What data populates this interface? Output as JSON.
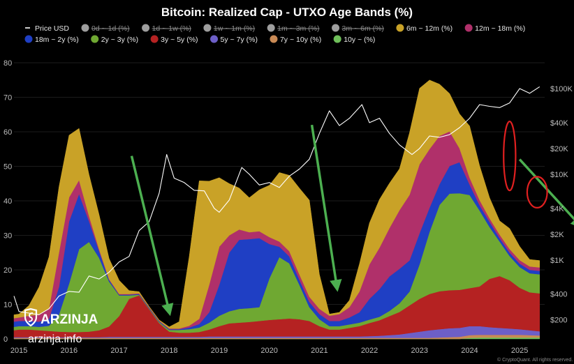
{
  "chart_data": {
    "type": "area",
    "title": "Bitcoin: Realized Cap - UTXO Age Bands (%)",
    "legend": [
      {
        "name": "Price USD",
        "color": "#ffffff",
        "active": true,
        "marker": "line"
      },
      {
        "name": "0d ~ 1d (%)",
        "color": "#9e9e9e",
        "active": false
      },
      {
        "name": "1d ~ 1w (%)",
        "color": "#9e9e9e",
        "active": false
      },
      {
        "name": "1w ~ 1m (%)",
        "color": "#9e9e9e",
        "active": false
      },
      {
        "name": "1m ~ 3m (%)",
        "color": "#9e9e9e",
        "active": false
      },
      {
        "name": "3m ~ 6m (%)",
        "color": "#9e9e9e",
        "active": false
      },
      {
        "name": "6m ~ 12m (%)",
        "color": "#c9a227",
        "active": true
      },
      {
        "name": "12m ~ 18m (%)",
        "color": "#b0306a",
        "active": true
      },
      {
        "name": "18m ~ 2y (%)",
        "color": "#1f3fc4",
        "active": true
      },
      {
        "name": "2y ~ 3y (%)",
        "color": "#6fa832",
        "active": true
      },
      {
        "name": "3y ~ 5y (%)",
        "color": "#b52222",
        "active": true
      },
      {
        "name": "5y ~ 7y (%)",
        "color": "#6d5fc7",
        "active": true
      },
      {
        "name": "7y ~ 10y (%)",
        "color": "#c98a55",
        "active": true
      },
      {
        "name": "10y ~ (%)",
        "color": "#6fbf5a",
        "active": true
      }
    ],
    "y_left": {
      "min": 0,
      "max": 80,
      "ticks": [
        0,
        10,
        20,
        30,
        40,
        50,
        60,
        70,
        80
      ]
    },
    "y_right": {
      "scale": "log",
      "ticks": [
        200,
        400,
        1000,
        2000,
        4000,
        10000,
        20000,
        40000,
        100000
      ],
      "tick_labels": [
        "$200",
        "$400",
        "$1K",
        "$2K",
        "$4K",
        "$10K",
        "$20K",
        "$40K",
        "$100K"
      ]
    },
    "x_axis": {
      "min": 2014.9,
      "max": 2025.5,
      "ticks": [
        2015,
        2016,
        2017,
        2018,
        2019,
        2020,
        2021,
        2022,
        2023,
        2024,
        2025
      ]
    },
    "x": [
      2014.9,
      2015.0,
      2015.2,
      2015.4,
      2015.6,
      2015.8,
      2016.0,
      2016.2,
      2016.4,
      2016.6,
      2016.8,
      2017.0,
      2017.2,
      2017.4,
      2017.6,
      2017.8,
      2018.0,
      2018.2,
      2018.4,
      2018.6,
      2018.8,
      2019.0,
      2019.2,
      2019.4,
      2019.6,
      2019.8,
      2020.0,
      2020.2,
      2020.4,
      2020.6,
      2020.8,
      2021.0,
      2021.2,
      2021.4,
      2021.6,
      2021.8,
      2022.0,
      2022.2,
      2022.4,
      2022.6,
      2022.8,
      2023.0,
      2023.2,
      2023.4,
      2023.6,
      2023.8,
      2024.0,
      2024.2,
      2024.4,
      2024.6,
      2024.8,
      2025.0,
      2025.2,
      2025.4
    ],
    "bands": [
      {
        "name": "10y ~ (%)",
        "color": "#6fbf5a",
        "values": [
          0,
          0,
          0,
          0,
          0,
          0,
          0,
          0,
          0,
          0,
          0,
          0,
          0,
          0,
          0,
          0,
          0,
          0,
          0,
          0,
          0,
          0,
          0,
          0,
          0,
          0,
          0,
          0,
          0,
          0,
          0,
          0,
          0,
          0,
          0,
          0,
          0,
          0,
          0,
          0,
          0,
          0,
          0,
          0,
          0,
          0,
          0.3,
          0.4,
          0.4,
          0.4,
          0.4,
          0.4,
          0.4,
          0.4
        ]
      },
      {
        "name": "7y ~ 10y (%)",
        "color": "#c98a55",
        "values": [
          0.3,
          0.3,
          0.3,
          0.3,
          0.3,
          0.3,
          0.3,
          0.3,
          0.3,
          0.3,
          0.3,
          0.3,
          0.3,
          0.3,
          0.3,
          0.3,
          0.3,
          0.3,
          0.3,
          0.3,
          0.3,
          0.3,
          0.3,
          0.3,
          0.3,
          0.3,
          0.3,
          0.3,
          0.3,
          0.3,
          0.3,
          0.3,
          0.3,
          0.3,
          0.3,
          0.3,
          0.3,
          0.3,
          0.3,
          0.3,
          0.3,
          0.3,
          0.3,
          0.4,
          0.5,
          0.6,
          0.8,
          0.8,
          0.8,
          0.8,
          0.8,
          0.8,
          0.7,
          0.6
        ]
      },
      {
        "name": "5y ~ 7y (%)",
        "color": "#6d5fc7",
        "values": [
          0.2,
          0.2,
          0.2,
          0.2,
          0.2,
          0.2,
          0.2,
          0.2,
          0.2,
          0.2,
          0.3,
          0.3,
          0.3,
          0.3,
          0.3,
          0.3,
          0.3,
          0.3,
          0.3,
          0.3,
          0.4,
          0.4,
          0.4,
          0.4,
          0.4,
          0.4,
          0.4,
          0.4,
          0.4,
          0.4,
          0.4,
          0.4,
          0.4,
          0.4,
          0.4,
          0.4,
          0.5,
          0.6,
          0.8,
          1.0,
          1.4,
          1.8,
          2.2,
          2.4,
          2.6,
          2.6,
          2.6,
          2.5,
          2.2,
          2.0,
          1.8,
          1.6,
          1.4,
          1.2
        ]
      },
      {
        "name": "3y ~ 5y (%)",
        "color": "#b52222",
        "values": [
          2.0,
          2.2,
          2.2,
          2.0,
          1.8,
          1.6,
          1.5,
          1.5,
          1.6,
          2.0,
          3.0,
          6.0,
          11.0,
          12.0,
          8.0,
          4.0,
          1.5,
          1.2,
          1.2,
          1.4,
          2.0,
          3.0,
          3.8,
          4.0,
          4.2,
          4.5,
          4.8,
          5.0,
          5.2,
          5.0,
          4.5,
          3.0,
          2.0,
          2.0,
          2.5,
          3.0,
          3.8,
          4.5,
          5.5,
          6.5,
          8.0,
          9.5,
          10.5,
          11.0,
          11.0,
          11.0,
          11.0,
          11.5,
          14.0,
          15.0,
          14.0,
          12.0,
          11.0,
          11.0
        ]
      },
      {
        "name": "2y ~ 3y (%)",
        "color": "#6fa832",
        "values": [
          1.0,
          1.0,
          1.0,
          1.0,
          1.5,
          5.0,
          14.0,
          24.0,
          26.0,
          21.0,
          13.0,
          6.0,
          1.0,
          0.2,
          0.2,
          0.3,
          0.5,
          0.8,
          1.0,
          1.3,
          2.0,
          3.0,
          3.5,
          4.0,
          4.0,
          4.0,
          12.0,
          18.0,
          16.0,
          10.0,
          4.0,
          2.0,
          1.0,
          1.0,
          1.0,
          1.0,
          1.0,
          1.0,
          1.5,
          2.5,
          4.0,
          10.0,
          18.0,
          25.0,
          28.0,
          28.0,
          27.0,
          22.0,
          15.0,
          10.0,
          7.0,
          6.0,
          5.5,
          5.5
        ]
      },
      {
        "name": "18m ~ 2y (%)",
        "color": "#1f3fc4",
        "values": [
          1.5,
          1.5,
          1.5,
          1.5,
          2.0,
          8.0,
          18.0,
          16.0,
          6.0,
          2.0,
          0.5,
          0.2,
          0.2,
          0.2,
          0.2,
          0.2,
          0.2,
          0.2,
          0.5,
          1.0,
          3.0,
          9.0,
          17.0,
          20.0,
          20.0,
          20.0,
          10.0,
          3.0,
          2.0,
          1.5,
          1.5,
          1.5,
          1.5,
          1.5,
          2.0,
          3.0,
          6.0,
          8.0,
          10.0,
          10.0,
          9.0,
          9.0,
          7.0,
          6.0,
          8.0,
          9.0,
          3.0,
          1.5,
          1.5,
          1.0,
          1.0,
          1.0,
          1.0,
          1.0
        ]
      },
      {
        "name": "12m ~ 18m (%)",
        "color": "#b0306a",
        "values": [
          1.0,
          1.0,
          1.5,
          2.0,
          3.0,
          10.0,
          7.0,
          4.0,
          1.5,
          0.5,
          0.2,
          0.2,
          0.2,
          0.2,
          0.2,
          0.2,
          0.2,
          0.2,
          0.5,
          1.5,
          8.0,
          11.0,
          5.0,
          3.0,
          2.0,
          2.0,
          2.0,
          1.5,
          1.5,
          1.5,
          1.5,
          1.5,
          1.5,
          2.0,
          3.0,
          6.0,
          10.0,
          12.0,
          14.0,
          17.0,
          19.0,
          20.0,
          17.0,
          14.0,
          10.0,
          4.0,
          2.0,
          1.5,
          1.0,
          1.0,
          1.0,
          1.0,
          1.0,
          1.0
        ]
      },
      {
        "name": "6m ~ 12m (%)",
        "color": "#c9a227",
        "values": [
          1.0,
          1.0,
          3.0,
          8.0,
          15.0,
          19.0,
          18.0,
          15.0,
          12.0,
          10.0,
          6.0,
          4.0,
          1.0,
          0.5,
          0.2,
          0.2,
          0.5,
          2.0,
          20.0,
          40.0,
          30.0,
          20.0,
          15.0,
          12.0,
          10.0,
          12.0,
          15.0,
          20.0,
          22.0,
          25.0,
          28.0,
          10.0,
          0.5,
          0.5,
          2.0,
          8.0,
          12.0,
          14.0,
          13.0,
          12.0,
          18.0,
          22.0,
          20.0,
          15.0,
          11.0,
          10.0,
          15.0,
          10.0,
          6.0,
          4.0,
          6.0,
          4.0,
          2.0,
          2.0
        ]
      }
    ],
    "price": {
      "name": "Price USD",
      "x": [
        2014.9,
        2015.0,
        2015.2,
        2015.4,
        2015.6,
        2015.8,
        2016.0,
        2016.2,
        2016.4,
        2016.6,
        2016.8,
        2017.0,
        2017.2,
        2017.4,
        2017.6,
        2017.8,
        2017.95,
        2018.1,
        2018.3,
        2018.5,
        2018.7,
        2018.9,
        2019.0,
        2019.2,
        2019.45,
        2019.6,
        2019.8,
        2020.0,
        2020.2,
        2020.4,
        2020.6,
        2020.8,
        2021.0,
        2021.2,
        2021.4,
        2021.6,
        2021.85,
        2022.0,
        2022.2,
        2022.4,
        2022.6,
        2022.85,
        2023.0,
        2023.2,
        2023.4,
        2023.6,
        2023.8,
        2024.0,
        2024.2,
        2024.4,
        2024.6,
        2024.8,
        2025.0,
        2025.2,
        2025.4
      ],
      "y": [
        380,
        250,
        240,
        230,
        270,
        380,
        430,
        420,
        650,
        600,
        720,
        950,
        1100,
        2200,
        2800,
        6000,
        17000,
        9000,
        8000,
        6500,
        6400,
        4000,
        3600,
        5000,
        12000,
        10000,
        7500,
        8000,
        7000,
        9500,
        11500,
        15000,
        30000,
        55000,
        37000,
        45000,
        65000,
        40000,
        45000,
        30000,
        22000,
        17000,
        20000,
        28000,
        27000,
        29000,
        35000,
        45000,
        65000,
        62000,
        60000,
        68000,
        100000,
        88000,
        105000
      ]
    },
    "annotations": [
      {
        "type": "arrow",
        "color": "#4caf50",
        "from": [
          2017.25,
          53
        ],
        "to": [
          2018.0,
          8
        ]
      },
      {
        "type": "arrow",
        "color": "#4caf50",
        "from": [
          2020.85,
          62
        ],
        "to": [
          2021.35,
          15
        ]
      },
      {
        "type": "arrow",
        "color": "#4caf50",
        "from": [
          2025.0,
          52
        ],
        "to": [
          2026.2,
          33
        ]
      },
      {
        "type": "ellipse",
        "color": "#e02020",
        "center": [
          2024.8,
          53
        ],
        "radius": [
          0.12,
          10
        ]
      },
      {
        "type": "ellipse",
        "color": "#e02020",
        "center": [
          2025.35,
          42.5
        ],
        "radius": [
          0.2,
          4.5
        ]
      }
    ]
  },
  "watermark": {
    "brand": "ARZINJA",
    "url": "arzinja.info",
    "credit": "© CryptoQuant. All rights reserved."
  }
}
